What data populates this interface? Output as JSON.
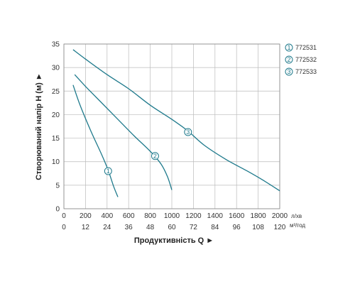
{
  "chart_data": {
    "type": "line",
    "xlabel": "Продуктивність Q ►",
    "ylabel": "Створюваний напір H (м) ►",
    "x_unit_primary": "л/хв",
    "x_unit_secondary": "м³/год",
    "xlim": [
      0,
      2000
    ],
    "ylim": [
      0,
      35
    ],
    "x_ticks": [
      "0",
      "200",
      "400",
      "600",
      "800",
      "1000",
      "1200",
      "1400",
      "1600",
      "1800",
      "2000"
    ],
    "x_ticks_secondary": [
      "0",
      "12",
      "24",
      "36",
      "48",
      "60",
      "72",
      "84",
      "96",
      "108",
      "120"
    ],
    "y_ticks": [
      "0",
      "5",
      "10",
      "15",
      "20",
      "25",
      "30",
      "35"
    ],
    "grid": true,
    "line_color": "#1f7a8c",
    "grid_color": "#bbbbbb",
    "legend_position": "right",
    "series": [
      {
        "name": "772531",
        "marker": "1",
        "marker_at": [
          410,
          8
        ],
        "values": [
          [
            85,
            26.3
          ],
          [
            150,
            22
          ],
          [
            250,
            16.5
          ],
          [
            350,
            11.5
          ],
          [
            410,
            8.2
          ],
          [
            460,
            4.8
          ],
          [
            500,
            2.5
          ]
        ]
      },
      {
        "name": "772532",
        "marker": "2",
        "marker_at": [
          845,
          11.2
        ],
        "values": [
          [
            100,
            28.5
          ],
          [
            200,
            26
          ],
          [
            350,
            22.5
          ],
          [
            500,
            19
          ],
          [
            650,
            15.5
          ],
          [
            800,
            12.2
          ],
          [
            900,
            9.5
          ],
          [
            960,
            6.8
          ],
          [
            1000,
            4
          ]
        ]
      },
      {
        "name": "772533",
        "marker": "3",
        "marker_at": [
          1150,
          16.3
        ],
        "values": [
          [
            85,
            33.8
          ],
          [
            200,
            31.8
          ],
          [
            400,
            28.5
          ],
          [
            600,
            25.5
          ],
          [
            800,
            22
          ],
          [
            1000,
            19
          ],
          [
            1150,
            16.5
          ],
          [
            1300,
            13.5
          ],
          [
            1500,
            10.5
          ],
          [
            1700,
            8
          ],
          [
            1850,
            6
          ],
          [
            2000,
            3.8
          ]
        ]
      }
    ]
  }
}
